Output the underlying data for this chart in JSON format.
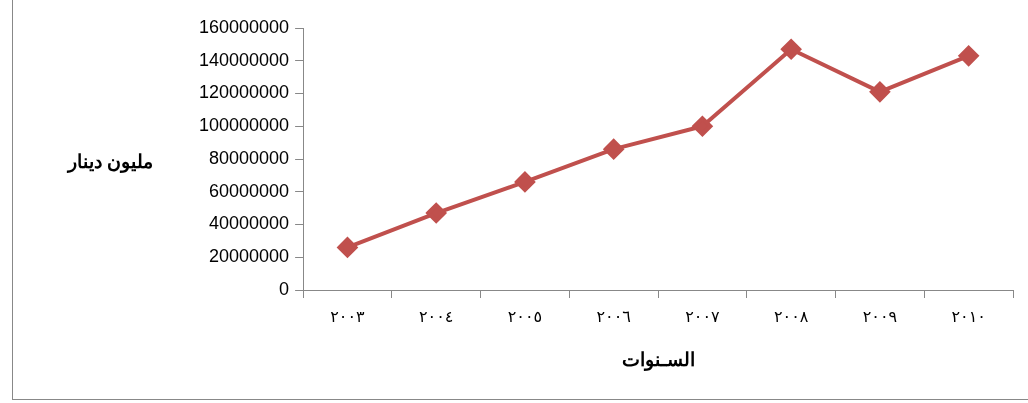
{
  "chart_data": {
    "type": "line",
    "xlabel": "السـنوات",
    "ylabel": "مليون دينار",
    "categories": [
      "٢٠٠٣",
      "٢٠٠٤",
      "٢٠٠٥",
      "٢٠٠٦",
      "٢٠٠٧",
      "٢٠٠٨",
      "٢٠٠٩",
      "٢٠١٠"
    ],
    "series": [
      {
        "color": "#c0504d",
        "values": [
          26000000,
          47000000,
          66000000,
          86000000,
          100000000,
          147000000,
          121000000,
          143000000
        ]
      }
    ],
    "ylim": [
      0,
      160000000
    ],
    "yticks": [
      0,
      20000000,
      40000000,
      60000000,
      80000000,
      100000000,
      120000000,
      140000000,
      160000000
    ],
    "grid": false,
    "legend": false,
    "marker": "diamond",
    "line_style": "solid"
  }
}
